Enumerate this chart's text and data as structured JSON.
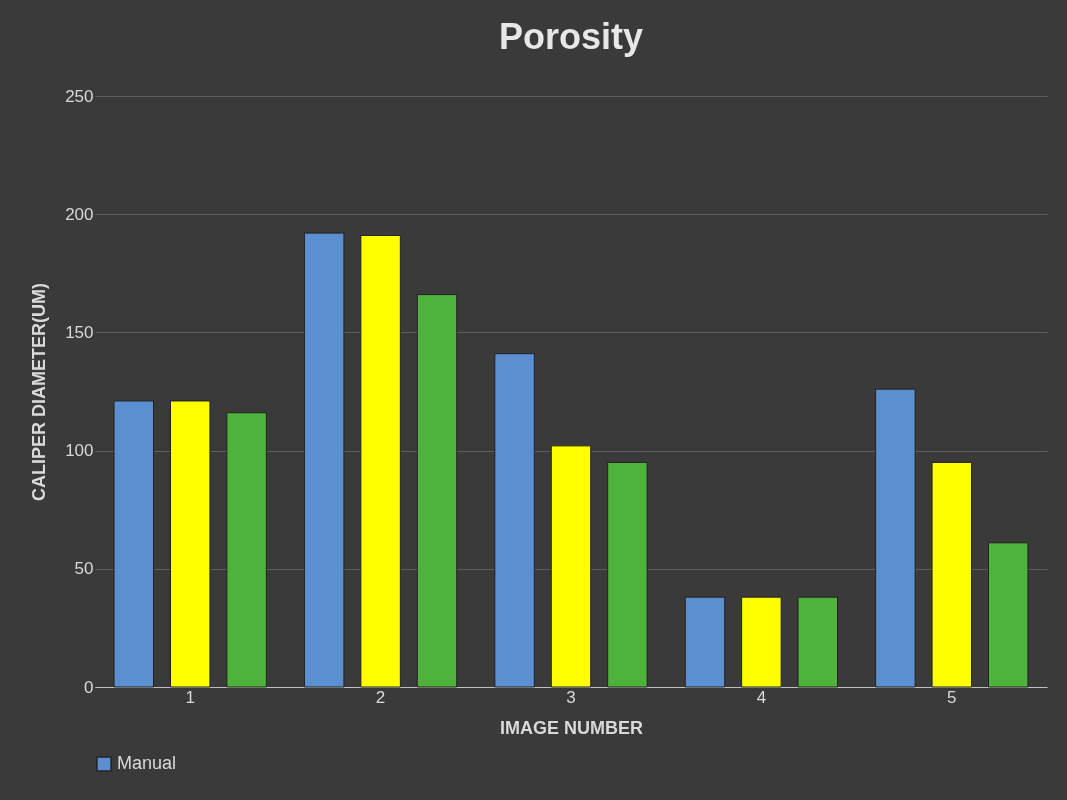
{
  "chart_data": {
    "type": "bar",
    "title": "Porosity",
    "xlabel": "IMAGE NUMBER",
    "ylabel": "CALIPER DIAMETER(UM)",
    "categories": [
      "1",
      "2",
      "3",
      "4",
      "5"
    ],
    "series": [
      {
        "name": "Manual",
        "color": "#5b8fd0",
        "values": [
          121,
          192,
          141,
          38,
          126
        ]
      },
      {
        "color": "#ffff00",
        "values": [
          121,
          191,
          102,
          38,
          95
        ]
      },
      {
        "color": "#4fb23a",
        "values": [
          116,
          166,
          95,
          38,
          61
        ]
      }
    ],
    "ylim": [
      0,
      250
    ],
    "yticks": [
      0,
      50,
      100,
      150,
      200,
      250
    ],
    "grid": "y",
    "legend": "bottom"
  }
}
